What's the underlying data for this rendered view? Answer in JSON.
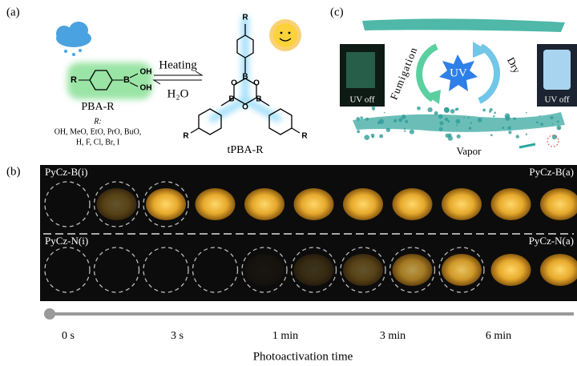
{
  "panels": {
    "a": {
      "label": "(a)",
      "reactant": {
        "name": "PBA-R",
        "atoms": [
          "R",
          "B",
          "OH",
          "OH"
        ]
      },
      "substituents_label": "R:",
      "substituents": [
        "OH, MeO, EtO, PrO, BuO,",
        "H, F, Cl, Br, I"
      ],
      "forward": "Heating",
      "reverse": "H₂O",
      "product": {
        "name": "tPBA-R",
        "atoms": [
          "R",
          "R",
          "R",
          "B",
          "B",
          "B",
          "O",
          "O",
          "O"
        ]
      }
    },
    "b": {
      "label": "(b)",
      "rows": [
        {
          "start": "PyCz-B(i)",
          "end": "PyCz-B(a)"
        },
        {
          "start": "PyCz-N(i)",
          "end": "PyCz-N(a)"
        }
      ],
      "time_labels": [
        "0 s",
        "3 s",
        "1 min",
        "3 min",
        "6 min"
      ],
      "axis_title": "Photoactivation time"
    },
    "c": {
      "label": "(c)",
      "inset_left": "UV off",
      "inset_right": "UV off",
      "center": "UV",
      "left_arrow": "Fumigation",
      "right_arrow": "Dry",
      "vapor": "Vapor"
    }
  }
}
